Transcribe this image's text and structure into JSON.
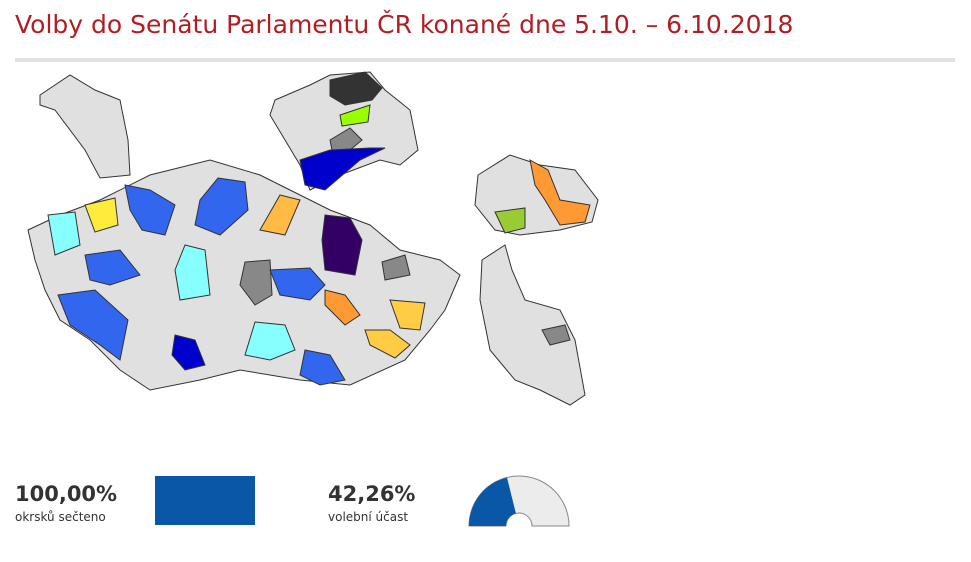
{
  "header": {
    "title": "Volby do Senátu Parlamentu ČR konané dne 5.10. – 6.10.2018"
  },
  "stats": [
    {
      "value": 100,
      "label": "100,00%",
      "caption": "okrsků sečteno"
    },
    {
      "value": 42.26,
      "label": "42,26%",
      "caption": "volební účast"
    }
  ]
}
